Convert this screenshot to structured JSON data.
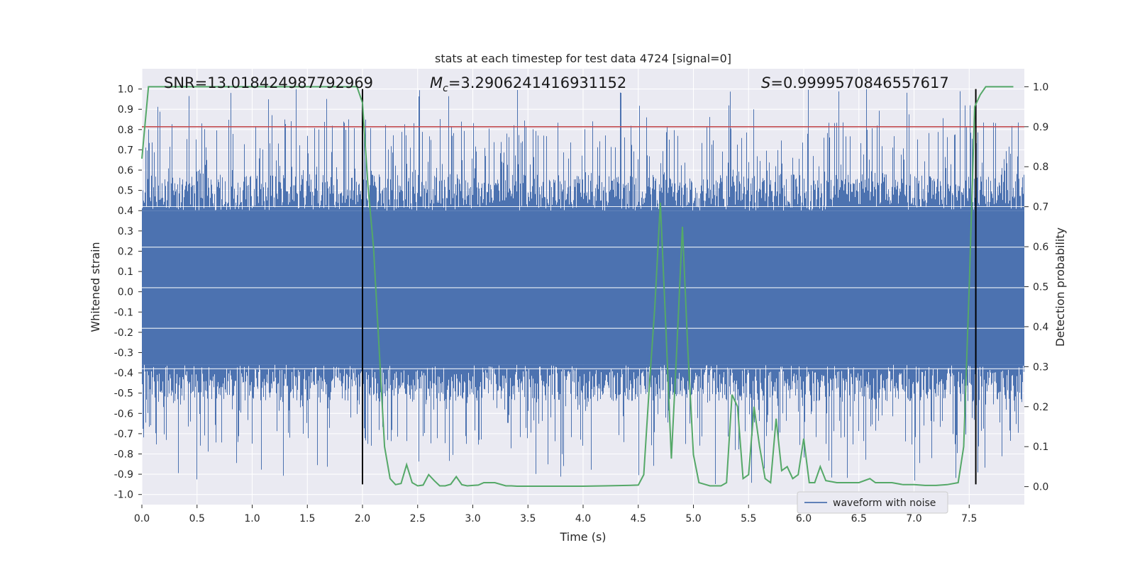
{
  "chart_data": {
    "type": "line",
    "title": "stats at each timestep for test data 4724 [signal=0]",
    "xlabel": "Time (s)",
    "ylabel_left": "Whitened strain",
    "ylabel_right": "Detection probability",
    "xlim": [
      0.0,
      8.0
    ],
    "ylim_left": [
      -1.05,
      1.1
    ],
    "ylim_right": [
      -0.045,
      1.045
    ],
    "grid": true,
    "x_ticks": [
      "0.0",
      "0.5",
      "1.0",
      "1.5",
      "2.0",
      "2.5",
      "3.0",
      "3.5",
      "4.0",
      "4.5",
      "5.0",
      "5.5",
      "6.0",
      "6.5",
      "7.0",
      "7.5"
    ],
    "y_ticks_left": [
      "1.0",
      "0.9",
      "0.8",
      "0.7",
      "0.6",
      "0.5",
      "0.4",
      "0.3",
      "0.2",
      "0.1",
      "0.0",
      "-0.1",
      "-0.2",
      "-0.3",
      "-0.4",
      "-0.5",
      "-0.6",
      "-0.7",
      "-0.8",
      "-0.9",
      "-1.0"
    ],
    "y_ticks_right": [
      "1.0",
      "0.9",
      "0.8",
      "0.7",
      "0.6",
      "0.5",
      "0.4",
      "0.3",
      "0.2",
      "0.1",
      "0.0"
    ],
    "annotations": {
      "snr_label": "SNR=13.018424987792969",
      "mc_symbol": "M",
      "mc_sub": "c",
      "mc_value": "=3.2906241416931152",
      "s_symbol": "S",
      "s_value": "=0.9999570846557617"
    },
    "legend": {
      "position": "lower-right",
      "entries": [
        "waveform with noise"
      ]
    },
    "threshold_right": 0.9,
    "vertical_lines_x": [
      2.0,
      7.56
    ],
    "vertical_lines_range_left": [
      -0.95,
      1.0
    ],
    "waveform": {
      "name": "waveform with noise",
      "color": "#4c72b0",
      "dense_band": [
        -0.36,
        0.4
      ],
      "peak_band": [
        -0.95,
        1.0
      ],
      "note": "dense whitened noise over 0-8 s"
    },
    "detection_probability": {
      "name": "detection probability",
      "color": "#55a868",
      "x": [
        0.0,
        0.06,
        0.12,
        0.25,
        0.5,
        0.75,
        1.0,
        1.25,
        1.5,
        1.75,
        1.95,
        2.0,
        2.05,
        2.1,
        2.15,
        2.2,
        2.25,
        2.3,
        2.35,
        2.4,
        2.45,
        2.5,
        2.55,
        2.6,
        2.65,
        2.7,
        2.75,
        2.8,
        2.85,
        2.9,
        2.95,
        3.0,
        3.05,
        3.1,
        3.2,
        3.3,
        3.35,
        3.4,
        3.45,
        3.5,
        3.6,
        3.7,
        3.8,
        4.0,
        4.2,
        4.4,
        4.5,
        4.55,
        4.6,
        4.65,
        4.7,
        4.75,
        4.8,
        4.85,
        4.9,
        4.95,
        5.0,
        5.05,
        5.1,
        5.15,
        5.25,
        5.3,
        5.35,
        5.4,
        5.45,
        5.5,
        5.55,
        5.6,
        5.65,
        5.7,
        5.75,
        5.8,
        5.85,
        5.9,
        5.95,
        6.0,
        6.05,
        6.1,
        6.15,
        6.2,
        6.3,
        6.35,
        6.4,
        6.45,
        6.5,
        6.6,
        6.65,
        6.7,
        6.8,
        6.9,
        7.0,
        7.1,
        7.2,
        7.3,
        7.4,
        7.45,
        7.5,
        7.55,
        7.6,
        7.65,
        7.7,
        7.75,
        7.8,
        7.9
      ],
      "y": [
        0.82,
        1.0,
        1.0,
        1.0,
        1.0,
        1.0,
        1.0,
        1.0,
        1.0,
        1.0,
        1.0,
        0.96,
        0.75,
        0.6,
        0.35,
        0.1,
        0.02,
        0.005,
        0.008,
        0.055,
        0.01,
        0.002,
        0.004,
        0.03,
        0.015,
        0.002,
        0.002,
        0.006,
        0.025,
        0.005,
        0.002,
        0.003,
        0.004,
        0.01,
        0.01,
        0.002,
        0.002,
        0.001,
        0.001,
        0.001,
        0.001,
        0.001,
        0.001,
        0.001,
        0.002,
        0.003,
        0.004,
        0.03,
        0.25,
        0.45,
        0.71,
        0.4,
        0.07,
        0.35,
        0.65,
        0.34,
        0.08,
        0.01,
        0.006,
        0.002,
        0.002,
        0.01,
        0.23,
        0.2,
        0.02,
        0.03,
        0.2,
        0.1,
        0.02,
        0.01,
        0.17,
        0.04,
        0.05,
        0.02,
        0.03,
        0.12,
        0.01,
        0.01,
        0.05,
        0.015,
        0.01,
        0.01,
        0.01,
        0.01,
        0.01,
        0.02,
        0.01,
        0.01,
        0.01,
        0.005,
        0.005,
        0.003,
        0.003,
        0.005,
        0.01,
        0.1,
        0.5,
        0.95,
        0.98,
        1.0,
        1.0,
        1.0,
        1.0,
        1.0
      ]
    }
  }
}
